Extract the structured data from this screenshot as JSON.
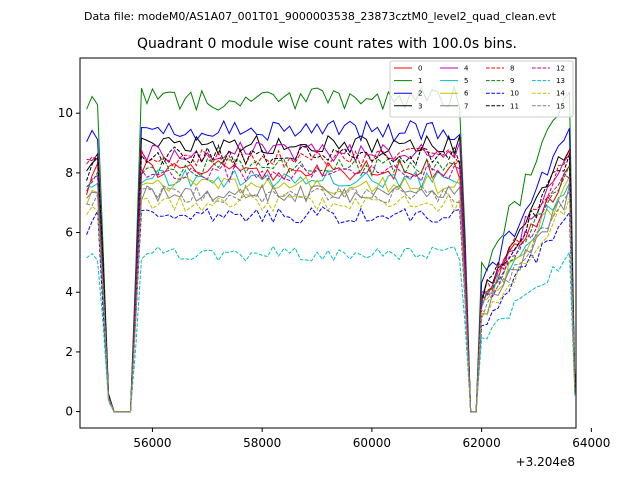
{
  "chart_data": {
    "type": "line",
    "suptitle": "Data file: modeM0/AS1A07_001T01_9000003538_23873cztM0_level2_quad_clean.evt",
    "title": "Quadrant 0 module wise count rates with 100.0s bins.",
    "xlabel": "",
    "ylabel": "",
    "x_offset_label": "+3.204e8",
    "xlim": [
      54680,
      63720
    ],
    "ylim": [
      -0.55,
      11.85
    ],
    "x_ticks": [
      56000,
      58000,
      60000,
      62000,
      64000
    ],
    "x_tick_labels": [
      "56000",
      "58000",
      "60000",
      "62000",
      "64000"
    ],
    "y_ticks": [
      0,
      2,
      4,
      6,
      8,
      10
    ],
    "y_tick_labels": [
      "0",
      "2",
      "4",
      "6",
      "8",
      "10"
    ],
    "grid": false,
    "legend_position": "top-right",
    "shape": {
      "x": [
        54800,
        54900,
        55000,
        55100,
        55200,
        55300,
        55400,
        55500,
        55600,
        55700,
        55800,
        61600,
        61700,
        61800,
        61900,
        62000,
        63600,
        63700
      ],
      "f": [
        0.94,
        0.97,
        0.985,
        0.55,
        0.06,
        0.0,
        0.0,
        0.0,
        0.0,
        0.45,
        1.0,
        1.0,
        0.55,
        0.0,
        0.0,
        0.45,
        1.0,
        0.09
      ]
    },
    "x_start": 54800,
    "x_end": 63700,
    "x_step": 100,
    "series": [
      {
        "name": "0",
        "level": 8.1,
        "noise": 0.35,
        "seed": 11,
        "color": "#ff0000",
        "dash": false
      },
      {
        "name": "1",
        "level": 10.5,
        "noise": 0.4,
        "seed": 23,
        "color": "#008000",
        "dash": false
      },
      {
        "name": "2",
        "level": 9.4,
        "noise": 0.35,
        "seed": 37,
        "color": "#0000ff",
        "dash": false
      },
      {
        "name": "3",
        "level": 8.9,
        "noise": 0.35,
        "seed": 41,
        "color": "#000000",
        "dash": false
      },
      {
        "name": "4",
        "level": 8.7,
        "noise": 0.35,
        "seed": 53,
        "color": "#bf00bf",
        "dash": false
      },
      {
        "name": "5",
        "level": 7.8,
        "noise": 0.3,
        "seed": 67,
        "color": "#00bfbf",
        "dash": false
      },
      {
        "name": "6",
        "level": 7.6,
        "noise": 0.3,
        "seed": 71,
        "color": "#bfbf00",
        "dash": false
      },
      {
        "name": "7",
        "level": 7.3,
        "noise": 0.3,
        "seed": 83,
        "color": "#808080",
        "dash": false
      },
      {
        "name": "8",
        "level": 8.5,
        "noise": 0.35,
        "seed": 97,
        "color": "#ff0000",
        "dash": true
      },
      {
        "name": "9",
        "level": 8.2,
        "noise": 0.3,
        "seed": 101,
        "color": "#008000",
        "dash": true
      },
      {
        "name": "10",
        "level": 6.6,
        "noise": 0.3,
        "seed": 113,
        "color": "#0000ff",
        "dash": true
      },
      {
        "name": "11",
        "level": 8.6,
        "noise": 0.35,
        "seed": 127,
        "color": "#000000",
        "dash": true
      },
      {
        "name": "12",
        "level": 8.0,
        "noise": 0.3,
        "seed": 131,
        "color": "#bf00bf",
        "dash": true
      },
      {
        "name": "13",
        "level": 5.3,
        "noise": 0.25,
        "seed": 139,
        "color": "#00bfbf",
        "dash": true
      },
      {
        "name": "14",
        "level": 7.0,
        "noise": 0.3,
        "seed": 149,
        "color": "#bfbf00",
        "dash": true
      },
      {
        "name": "15",
        "level": 7.3,
        "noise": 0.3,
        "seed": 151,
        "color": "#808080",
        "dash": true
      }
    ]
  }
}
